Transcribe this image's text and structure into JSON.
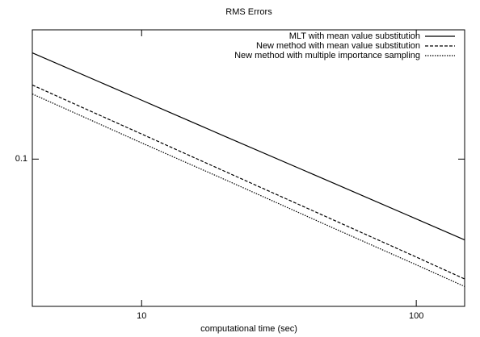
{
  "chart_data": {
    "type": "line",
    "title": "RMS Errors",
    "xlabel": "computational time (sec)",
    "x": [
      4,
      10,
      20,
      50,
      100,
      150
    ],
    "series": [
      {
        "name": "MLT with mean value substitution",
        "color": "#000000",
        "style": "solid",
        "values": [
          0.28,
          0.177,
          0.125,
          0.0792,
          0.056,
          0.0457
        ]
      },
      {
        "name": "New method with mean value substitution",
        "color": "#000000",
        "style": "dashed",
        "values": [
          0.205,
          0.1275,
          0.089,
          0.0554,
          0.0387,
          0.0313
        ]
      },
      {
        "name": "New method with multiple importance sampling",
        "color": "#000000",
        "style": "dotted",
        "values": [
          0.188,
          0.117,
          0.0822,
          0.0512,
          0.0359,
          0.0291
        ]
      }
    ],
    "xlim": [
      4,
      150
    ],
    "ylim": [
      0.024,
      0.35
    ],
    "xticks": [
      10,
      100
    ],
    "yticks": [
      0.1
    ],
    "xscale": "log",
    "yscale": "log",
    "legend": "upper right",
    "grid": false
  }
}
